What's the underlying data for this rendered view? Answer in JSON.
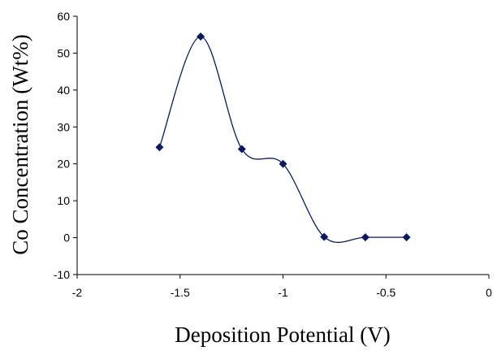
{
  "chart_data": {
    "type": "scatter",
    "xlabel": "Deposition Potential (V)",
    "ylabel": "Co Concentration (Wt%)",
    "xlim": [
      -2,
      0
    ],
    "ylim": [
      -10,
      60
    ],
    "xticks": [
      -2,
      -1.5,
      -1,
      -0.5,
      0
    ],
    "yticks": [
      -10,
      0,
      10,
      20,
      30,
      40,
      50,
      60
    ],
    "xtick_labels": [
      "-2",
      "-1.5",
      "-1",
      "-0.5",
      "0"
    ],
    "ytick_labels": [
      "-10",
      "0",
      "10",
      "20",
      "30",
      "40",
      "50",
      "60"
    ],
    "grid": false,
    "smoothed_line": true,
    "marker": "diamond",
    "series_color": "#0a1a5c",
    "series": [
      {
        "x": [
          -1.6,
          -1.4,
          -1.2,
          -1.0,
          -0.8,
          -0.6,
          -0.4
        ],
        "y": [
          24.5,
          54.5,
          24,
          20,
          0.2,
          0.1,
          0.1
        ]
      }
    ]
  }
}
